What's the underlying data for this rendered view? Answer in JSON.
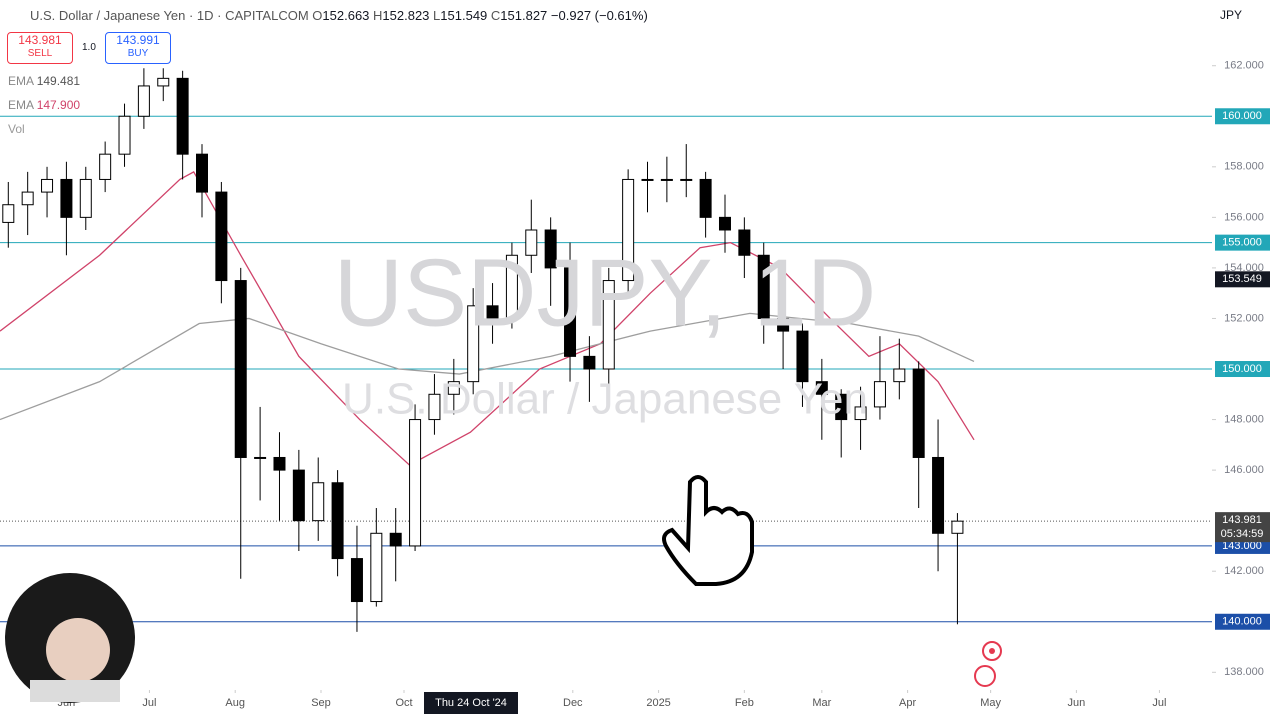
{
  "header": {
    "symbol": "U.S. Dollar / Japanese Yen · 1D · CAPITALCOM",
    "o_label": "O",
    "open": "152.663",
    "h_label": "H",
    "high": "152.823",
    "l_label": "L",
    "low": "151.549",
    "c_label": "C",
    "close": "151.827",
    "change": "−0.927 (−0.61%)",
    "sell_price": "143.981",
    "sell": "SELL",
    "spread": "1.0",
    "buy_price": "143.991",
    "buy": "BUY",
    "ema1_label": "EMA",
    "ema1_value": "149.481",
    "ema2_label": "EMA",
    "ema2_value": "147.900",
    "vol": "Vol",
    "currency": "JPY",
    "watermark": "USDJPY, 1D",
    "watermark_sub": "U.S. Dollar / Japanese Yen"
  },
  "chart_data": {
    "type": "candlestick",
    "x": [
      -21,
      -14,
      -7,
      0,
      7,
      14,
      21,
      28,
      35,
      42,
      49,
      56,
      63,
      70,
      77,
      84,
      91,
      98,
      105,
      112,
      119,
      126,
      133,
      140,
      147,
      154,
      161,
      168,
      175,
      182,
      189,
      196,
      203,
      210,
      217,
      224,
      231,
      238,
      245,
      252,
      259,
      266,
      273,
      280,
      287,
      294,
      301,
      308,
      315,
      322
    ],
    "open": [
      155.8,
      156.5,
      157,
      157.5,
      156,
      157.5,
      158.5,
      160,
      161.2,
      161.5,
      158.5,
      157,
      153.5,
      146.5,
      146.5,
      146,
      144,
      145.5,
      142.5,
      140.8,
      143.5,
      143,
      148,
      149,
      149.5,
      152.5,
      152,
      154.5,
      155.5,
      154,
      150.5,
      150,
      153.5,
      157.5,
      157.5,
      157.5,
      157.5,
      156,
      155.5,
      154.5,
      152,
      151.5,
      149.5,
      149,
      148,
      148.5,
      149.5,
      150,
      146.5,
      143.5
    ],
    "high": [
      157.4,
      157.8,
      158,
      158.2,
      158,
      159,
      160.5,
      161.9,
      161.9,
      161.8,
      158.9,
      157.4,
      154,
      148.5,
      147.5,
      146.8,
      146.5,
      146,
      143.8,
      144.5,
      144.5,
      148.6,
      149.8,
      150.4,
      153.2,
      153.4,
      155,
      156.7,
      156,
      155,
      151.3,
      154,
      157.9,
      158.2,
      158.4,
      158.9,
      157.8,
      156.9,
      156,
      155,
      152.7,
      151.8,
      150.4,
      149.2,
      149.3,
      151.3,
      151.2,
      150.3,
      148,
      144.3
    ],
    "low": [
      154.8,
      155.3,
      156,
      154.5,
      155.5,
      157,
      158,
      159.5,
      160.6,
      157.5,
      156,
      152.6,
      141.7,
      144.8,
      144,
      142.8,
      143.2,
      141.8,
      139.6,
      140.6,
      141.6,
      142.8,
      147.4,
      148.2,
      149,
      151,
      151.6,
      153.8,
      152.5,
      149.5,
      148.7,
      149.2,
      153,
      156.2,
      156.6,
      156.8,
      155.2,
      154.6,
      153.6,
      151,
      150,
      148.5,
      147.2,
      146.5,
      146.8,
      148,
      148.8,
      144.5,
      142,
      139.9
    ],
    "close": [
      156.5,
      157,
      157.5,
      156,
      157.5,
      158.5,
      160,
      161.2,
      161.5,
      158.5,
      157,
      153.5,
      146.5,
      146.5,
      146,
      144,
      145.5,
      142.5,
      140.8,
      143.5,
      143,
      148,
      149,
      149.5,
      152.5,
      152,
      154.5,
      155.5,
      154,
      150.5,
      150,
      153.5,
      157.5,
      157.5,
      157.5,
      157.5,
      156,
      155.5,
      154.5,
      152,
      151.5,
      149.5,
      149,
      148,
      148.5,
      149.5,
      150,
      146.5,
      143.5,
      143.98
    ],
    "up_color": "#ffffff",
    "down_color": "#000000",
    "lines": [
      {
        "name": "EMA",
        "color": "#d0436a",
        "x": [
          -24,
          12,
          41,
          46,
          63,
          84,
          106,
          124,
          146,
          171,
          193,
          211,
          229,
          240,
          258,
          276,
          290,
          301,
          315,
          328
        ],
        "values": [
          151.5,
          154.5,
          157.5,
          157.8,
          154.5,
          150.5,
          148,
          146.2,
          147.5,
          150,
          151,
          153,
          154.8,
          155,
          154,
          152,
          150.5,
          151,
          149.5,
          147.2
        ]
      },
      {
        "name": "EMA",
        "color": "#9e9e9e",
        "x": [
          -24,
          12,
          48,
          66,
          92,
          120,
          142,
          175,
          211,
          247,
          283,
          308,
          328
        ],
        "values": [
          148,
          149.5,
          151.8,
          152,
          151,
          150,
          149.8,
          150.5,
          151.5,
          152.2,
          151.8,
          151.3,
          150.3
        ]
      }
    ],
    "levels": [
      {
        "value": 160,
        "label": "160.000",
        "color": "#22a7b8"
      },
      {
        "value": 155,
        "label": "155.000",
        "color": "#22a7b8"
      },
      {
        "value": 150,
        "label": "150.000",
        "color": "#22a7b8"
      },
      {
        "value": 143,
        "label": "143.000",
        "color": "#1c4fa8"
      },
      {
        "value": 140,
        "label": "140.000",
        "color": "#1c4fa8"
      }
    ],
    "last_price": 143.981,
    "countdown": "05:34:59",
    "crosshair_price": 153.549,
    "crosshair_date": "Thu 24 Oct '24",
    "xlim": [
      -24,
      414
    ],
    "ylim": [
      137.3,
      164.6
    ],
    "yticks": [
      {
        "value": 138,
        "label": "138.000"
      },
      {
        "value": 142,
        "label": "142.000"
      },
      {
        "value": 146,
        "label": "146.000"
      },
      {
        "value": 148,
        "label": "148.000"
      },
      {
        "value": 152,
        "label": "152.000"
      },
      {
        "value": 154,
        "label": "154.000"
      },
      {
        "value": 156,
        "label": "156.000"
      },
      {
        "value": 158,
        "label": "158.000"
      },
      {
        "value": 162,
        "label": "162.000"
      }
    ],
    "xticks": [
      {
        "value": 0,
        "label": "Jun"
      },
      {
        "value": 30,
        "label": "Jul"
      },
      {
        "value": 61,
        "label": "Aug"
      },
      {
        "value": 92,
        "label": "Sep"
      },
      {
        "value": 122,
        "label": "Oct"
      },
      {
        "value": 183,
        "label": "Dec"
      },
      {
        "value": 214,
        "label": "2025"
      },
      {
        "value": 245,
        "label": "Feb"
      },
      {
        "value": 273,
        "label": "Mar"
      },
      {
        "value": 304,
        "label": "Apr"
      },
      {
        "value": 334,
        "label": "May"
      },
      {
        "value": 365,
        "label": "Jun"
      },
      {
        "value": 395,
        "label": "Jul"
      }
    ]
  }
}
